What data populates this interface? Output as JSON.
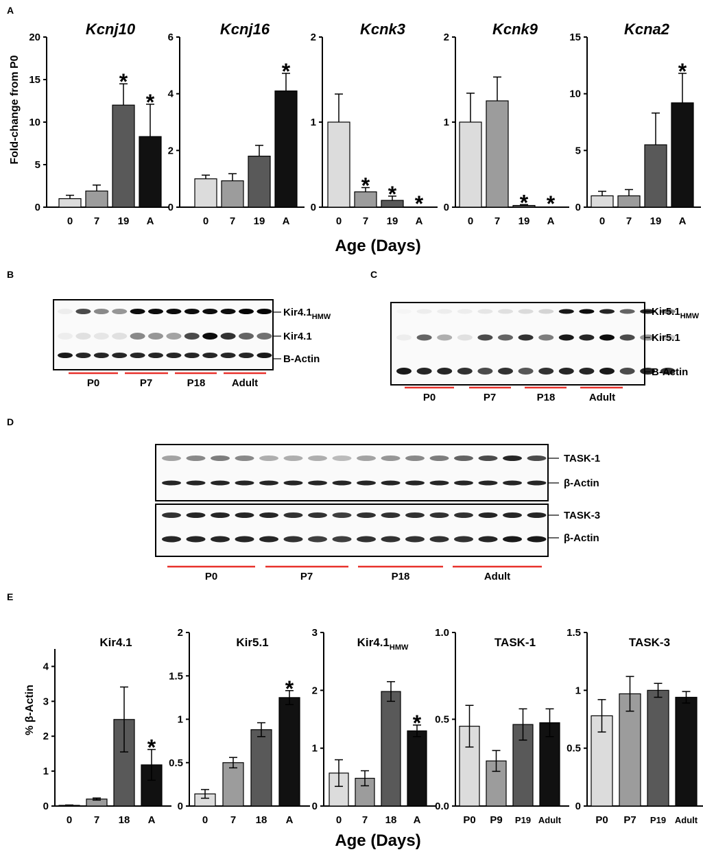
{
  "panel_labels": {
    "a": "A",
    "b": "B",
    "c": "C",
    "d": "D",
    "e": "E"
  },
  "colors": {
    "bar_shades": [
      "#dcdcdc",
      "#9c9c9c",
      "#595959",
      "#111111"
    ],
    "group_line": "#e8312b"
  },
  "panel_a": {
    "ylabel": "Fold-change from P0",
    "xlabel": "Age (Days)",
    "categories": [
      "0",
      "7",
      "19",
      "A"
    ]
  },
  "panel_e": {
    "ylabel": "% β-Actin",
    "xlabel": "Age (Days)"
  },
  "chart_data": [
    {
      "type": "bar",
      "panel": "A",
      "title": "Kcnj10",
      "title_sub": "",
      "categories": [
        "0",
        "7",
        "19",
        "A"
      ],
      "values": [
        1.0,
        1.9,
        12.0,
        8.3
      ],
      "errors": [
        0.4,
        0.7,
        2.5,
        3.8
      ],
      "significant": [
        false,
        false,
        true,
        true
      ],
      "ylim": [
        0,
        20
      ],
      "yticks": [
        "0",
        "5",
        "10",
        "15",
        "20"
      ],
      "ylabel": "Fold-change from P0",
      "xlabel": "Age (Days)"
    },
    {
      "type": "bar",
      "panel": "A",
      "title": "Kcnj16",
      "title_sub": "",
      "categories": [
        "0",
        "7",
        "19",
        "A"
      ],
      "values": [
        1.0,
        0.93,
        1.8,
        4.1
      ],
      "errors": [
        0.13,
        0.25,
        0.38,
        0.62
      ],
      "significant": [
        false,
        false,
        false,
        true
      ],
      "ylim": [
        0,
        6
      ],
      "yticks": [
        "0",
        "2",
        "4",
        "6"
      ]
    },
    {
      "type": "bar",
      "panel": "A",
      "title": "Kcnk3",
      "title_sub": "",
      "categories": [
        "0",
        "7",
        "19",
        "A"
      ],
      "values": [
        1.0,
        0.18,
        0.08,
        0.0
      ],
      "errors": [
        0.33,
        0.05,
        0.05,
        0.0
      ],
      "significant": [
        false,
        true,
        true,
        true
      ],
      "ylim": [
        0,
        2
      ],
      "yticks": [
        "0",
        "1",
        "2"
      ]
    },
    {
      "type": "bar",
      "panel": "A",
      "title": "Kcnk9",
      "title_sub": "",
      "categories": [
        "0",
        "7",
        "19",
        "A"
      ],
      "values": [
        1.0,
        1.25,
        0.02,
        0.0
      ],
      "errors": [
        0.34,
        0.28,
        0.01,
        0.0
      ],
      "significant": [
        false,
        false,
        true,
        true
      ],
      "ylim": [
        0,
        2
      ],
      "yticks": [
        "0",
        "1",
        "2"
      ]
    },
    {
      "type": "bar",
      "panel": "A",
      "title": "Kcna2",
      "title_sub": "",
      "categories": [
        "0",
        "7",
        "19",
        "A"
      ],
      "values": [
        1.0,
        1.0,
        5.5,
        9.2
      ],
      "errors": [
        0.4,
        0.55,
        2.8,
        2.6
      ],
      "significant": [
        false,
        false,
        false,
        true
      ],
      "ylim": [
        0,
        15
      ],
      "yticks": [
        "0",
        "5",
        "10",
        "15"
      ]
    },
    {
      "type": "bar",
      "panel": "E",
      "title": "Kir4.1",
      "title_sub": "",
      "categories": [
        "0",
        "7",
        "18",
        "A"
      ],
      "values": [
        0.02,
        0.2,
        2.48,
        1.18
      ],
      "errors": [
        0.01,
        0.03,
        0.93,
        0.44
      ],
      "significant": [
        false,
        false,
        false,
        true
      ],
      "ylim": [
        0,
        4.5
      ],
      "yticks": [
        "0",
        "1",
        "2",
        "3",
        "4"
      ],
      "ylabel": "% β-Actin",
      "xlabel": "Age (Days)"
    },
    {
      "type": "bar",
      "panel": "E",
      "title": "Kir5.1",
      "title_sub": "",
      "categories": [
        "0",
        "7",
        "18",
        "A"
      ],
      "values": [
        0.14,
        0.5,
        0.88,
        1.25
      ],
      "errors": [
        0.05,
        0.06,
        0.08,
        0.08
      ],
      "significant": [
        false,
        false,
        false,
        true
      ],
      "ylim": [
        0,
        2
      ],
      "yticks": [
        "0",
        "0.5",
        "1",
        "1.5",
        "2"
      ]
    },
    {
      "type": "bar",
      "panel": "E",
      "title": "Kir4.1",
      "title_sub": "HMW",
      "categories": [
        "0",
        "7",
        "18",
        "A"
      ],
      "values": [
        0.57,
        0.48,
        1.98,
        1.3
      ],
      "errors": [
        0.23,
        0.13,
        0.17,
        0.1
      ],
      "significant": [
        false,
        false,
        false,
        true
      ],
      "ylim": [
        0,
        3
      ],
      "yticks": [
        "0",
        "1",
        "2",
        "3"
      ]
    },
    {
      "type": "bar",
      "panel": "E",
      "title": "TASK-1",
      "title_sub": "",
      "categories": [
        "P0",
        "P9",
        "P19",
        "Adult"
      ],
      "values": [
        0.46,
        0.26,
        0.47,
        0.48
      ],
      "errors": [
        0.12,
        0.06,
        0.09,
        0.08
      ],
      "significant": [
        false,
        false,
        false,
        false
      ],
      "ylim": [
        0,
        1
      ],
      "yticks": [
        "0.0",
        "0.5",
        "1.0"
      ]
    },
    {
      "type": "bar",
      "panel": "E",
      "title": "TASK-3",
      "title_sub": "",
      "categories": [
        "P0",
        "P7",
        "P19",
        "Adult"
      ],
      "values": [
        0.78,
        0.97,
        1.0,
        0.94
      ],
      "errors": [
        0.14,
        0.15,
        0.06,
        0.05
      ],
      "significant": [
        false,
        false,
        false,
        false
      ],
      "ylim": [
        0,
        1.5
      ],
      "yticks": [
        "0",
        "0.5",
        "1",
        "1.5"
      ]
    }
  ],
  "blot_b": {
    "bands": [
      {
        "name": "Kir4.1",
        "sub": "HMW"
      },
      {
        "name": "Kir4.1",
        "sub": ""
      },
      {
        "name": "B-Actin",
        "sub": ""
      }
    ],
    "groups": [
      "P0",
      "P7",
      "P18",
      "Adult"
    ]
  },
  "blot_c": {
    "bands": [
      {
        "name": "Kir5.1",
        "sub": "HMW"
      },
      {
        "name": "Kir5.1",
        "sub": ""
      },
      {
        "name": "B-Actin",
        "sub": ""
      }
    ],
    "groups": [
      "P0",
      "P7",
      "P18",
      "Adult"
    ]
  },
  "blot_d": {
    "bands": [
      "TASK-1",
      "β-Actin",
      "TASK-3",
      "β-Actin"
    ],
    "groups": [
      "P0",
      "P7",
      "P18",
      "Adult"
    ]
  }
}
